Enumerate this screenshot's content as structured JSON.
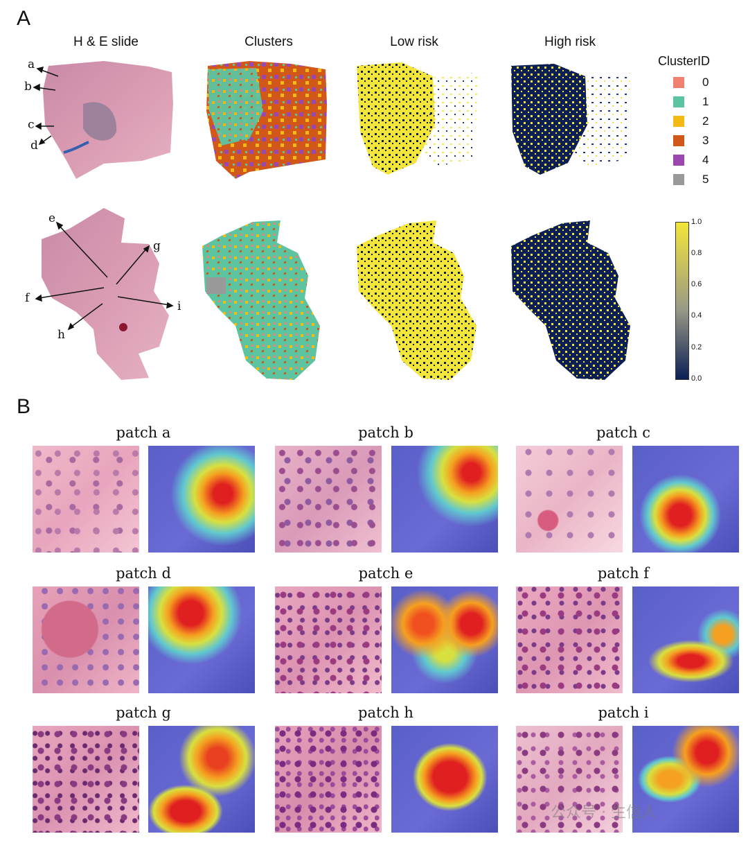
{
  "panel_a": {
    "letter": "A",
    "columns": [
      "H & E slide",
      "Clusters",
      "Low risk",
      "High risk"
    ],
    "top_annotations": [
      "a",
      "b",
      "c",
      "d"
    ],
    "bottom_annotations": [
      "e",
      "f",
      "g",
      "h",
      "i"
    ]
  },
  "legend": {
    "title": "ClusterID",
    "items": [
      {
        "label": "0",
        "color": "#f08070"
      },
      {
        "label": "1",
        "color": "#5cc4a0"
      },
      {
        "label": "2",
        "color": "#f5b914"
      },
      {
        "label": "3",
        "color": "#d2581a"
      },
      {
        "label": "4",
        "color": "#9a48b0"
      },
      {
        "label": "5",
        "color": "#999999"
      }
    ]
  },
  "colorbar": {
    "ticks": [
      "1.0",
      "0.8",
      "0.6",
      "0.4",
      "0.2",
      "0.0"
    ],
    "colors": [
      "#f4e53a",
      "#9a9a86",
      "#0b1f55"
    ]
  },
  "panel_b": {
    "letter": "B",
    "patches": [
      "patch a",
      "patch b",
      "patch c",
      "patch d",
      "patch e",
      "patch f",
      "patch g",
      "patch h",
      "patch i"
    ]
  },
  "watermark": "公众号 · 生信人"
}
